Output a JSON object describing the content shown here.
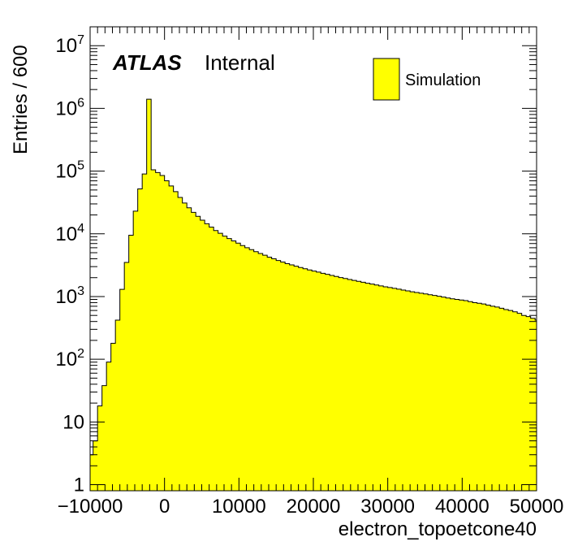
{
  "chart_data": {
    "type": "bar",
    "title": "",
    "xlabel": "electron_topoetcone40",
    "ylabel": "Entries / 600",
    "xlim": [
      -10000,
      50000
    ],
    "ylim": [
      0.8,
      20000000
    ],
    "yscale": "log",
    "bin_width": 600,
    "x_tick_labels": [
      "−10000",
      "0",
      "10000",
      "20000",
      "30000",
      "40000",
      "50000"
    ],
    "x_tick_values": [
      -10000,
      0,
      10000,
      20000,
      30000,
      40000,
      50000
    ],
    "y_tick_labels": [
      {
        "value": 1,
        "base": "1",
        "exp": ""
      },
      {
        "value": 10,
        "base": "10",
        "exp": ""
      },
      {
        "value": 100,
        "base": "10",
        "exp": "2"
      },
      {
        "value": 1000,
        "base": "10",
        "exp": "3"
      },
      {
        "value": 10000,
        "base": "10",
        "exp": "4"
      },
      {
        "value": 100000,
        "base": "10",
        "exp": "5"
      },
      {
        "value": 1000000,
        "base": "10",
        "exp": "6"
      },
      {
        "value": 10000000,
        "base": "10",
        "exp": "7"
      }
    ],
    "series": [
      {
        "name": "Simulation",
        "color": "#ffff00",
        "edge_color": "#000000",
        "bin_edges_start": -10200,
        "values": [
          3,
          5,
          18,
          38,
          90,
          180,
          420,
          1300,
          3500,
          9500,
          23000,
          52000,
          90000,
          1400000,
          105000,
          95000,
          85000,
          70000,
          58000,
          47000,
          38000,
          31000,
          26000,
          22000,
          19000,
          16500,
          14500,
          12800,
          11300,
          10200,
          9200,
          8400,
          7700,
          7100,
          6500,
          6000,
          5600,
          5200,
          4850,
          4550,
          4250,
          4000,
          3750,
          3550,
          3350,
          3200,
          3050,
          2900,
          2780,
          2650,
          2550,
          2450,
          2350,
          2260,
          2170,
          2090,
          2010,
          1940,
          1870,
          1810,
          1750,
          1690,
          1630,
          1580,
          1530,
          1480,
          1430,
          1390,
          1350,
          1310,
          1270,
          1230,
          1190,
          1160,
          1130,
          1100,
          1070,
          1040,
          1010,
          980,
          950,
          920,
          900,
          880,
          860,
          830,
          800,
          780,
          760,
          730,
          700,
          680,
          650,
          620,
          600,
          570,
          540,
          500,
          480,
          450,
          420
        ]
      }
    ],
    "legend": {
      "position": "top-right",
      "label": "Simulation"
    },
    "annotations": {
      "experiment": "ATLAS",
      "status": "Internal"
    },
    "grid": false
  }
}
